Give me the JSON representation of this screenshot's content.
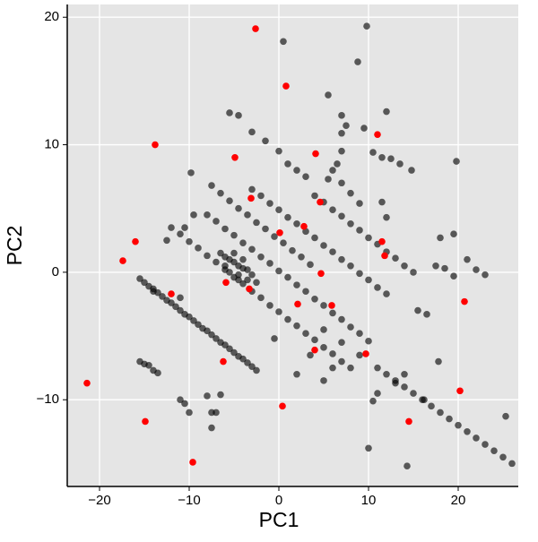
{
  "chart_data": {
    "type": "scatter",
    "x_label": "PC1",
    "y_label": "PC2",
    "xlim": [
      -23.6,
      26.7
    ],
    "ylim": [
      -16.8,
      21.0
    ],
    "xticks": [
      {
        "value": -20,
        "label": "−20"
      },
      {
        "value": -10,
        "label": "−10"
      },
      0,
      10,
      20
    ],
    "yticks": [
      {
        "value": -10,
        "label": "−10"
      },
      0,
      10,
      20
    ],
    "grid": true,
    "series": [
      {
        "color": "rgba(0,0,0,0.62)",
        "x": [
          -15.5,
          -15,
          -14.5,
          -14,
          -13.5,
          -13,
          -12.5,
          -12,
          -11.5,
          -11,
          -10.5,
          -10,
          -9.5,
          -9,
          -8.5,
          -8,
          -7.5,
          -7,
          -6.5,
          -6,
          -5.5,
          -5,
          -4.5,
          -4,
          -3.5,
          -3,
          -2.5,
          -12,
          -11,
          -10,
          -9,
          -8,
          -7,
          -6,
          -5.5,
          -5,
          -4.5,
          -4,
          -3,
          -2,
          -1,
          0,
          1,
          2,
          3,
          4,
          5,
          6,
          7,
          8,
          -6,
          -5.5,
          -5,
          -4.5,
          -4,
          -6.5,
          -3.5,
          -5,
          -4,
          -3,
          -6,
          -4.5,
          -3.5,
          -2.5,
          -8,
          -7,
          -6,
          -5,
          -4,
          -3,
          -2,
          -1,
          0,
          1,
          2,
          3,
          4,
          5,
          6,
          7,
          8,
          9,
          10,
          -3,
          -2,
          -1,
          0,
          1,
          2,
          3,
          4,
          5,
          6,
          7,
          8,
          9,
          10,
          11,
          12,
          -7.5,
          -6.5,
          -5.5,
          -4.5,
          -3.5,
          -2.5,
          -1.5,
          -0.5,
          0.5,
          1.5,
          2.5,
          3.5,
          4,
          5,
          6,
          7,
          8,
          9,
          10,
          11,
          12,
          13,
          14,
          15,
          5,
          7,
          9,
          11,
          12,
          13,
          14,
          15,
          16,
          17,
          18,
          19,
          20,
          21,
          22,
          23,
          24,
          25,
          26,
          -5.5,
          -4.5,
          -3,
          -1.5,
          0,
          1,
          2,
          3,
          5.5,
          7,
          7.5,
          9.5,
          12,
          9.8,
          8.8,
          0.5,
          7,
          7,
          6.5,
          10.5,
          11.5,
          12.5,
          13.5,
          14.8,
          6,
          5.5,
          7,
          8,
          9,
          11.5,
          12,
          19.8,
          19.5,
          18,
          17.5,
          18.5,
          21,
          22,
          23,
          19.5,
          15.5,
          16.5,
          17.8,
          25.3,
          16.2,
          13,
          14,
          11,
          -9.8,
          -9.5,
          -10.5,
          -12.5,
          -11,
          -14,
          -15.5,
          -15,
          -14.5,
          -14,
          -13.5,
          -11,
          -10.5,
          -10,
          -7.5,
          -7,
          -7.5,
          -6.5,
          -0.5,
          3.5,
          6,
          10.5,
          10,
          14.3,
          5,
          2,
          -8
        ],
        "values": [
          -0.5,
          -0.8,
          -1.1,
          -1.3,
          -1.6,
          -1.9,
          -2.2,
          -2.4,
          -2.7,
          -3.0,
          -3.3,
          -3.5,
          -3.8,
          -4.1,
          -4.4,
          -4.6,
          -4.9,
          -5.2,
          -5.5,
          -5.7,
          -6.0,
          -6.3,
          -6.6,
          -6.8,
          -7.1,
          -7.4,
          -7.7,
          3.5,
          3.0,
          2.4,
          1.9,
          1.3,
          0.8,
          0.2,
          0,
          -0.4,
          -0.6,
          -0.9,
          -1.5,
          -2.0,
          -2.6,
          -3.1,
          -3.7,
          -4.2,
          -4.8,
          -5.3,
          -5.9,
          -6.4,
          -7.0,
          -7.5,
          1.2,
          1.0,
          0.8,
          0.5,
          0.3,
          1.5,
          0.2,
          1.5,
          1.0,
          -0.2,
          0.5,
          -0.2,
          -0.6,
          -0.8,
          4.5,
          4.0,
          3.4,
          2.9,
          2.3,
          1.8,
          1.2,
          0.7,
          0.1,
          -0.4,
          -1.0,
          -1.5,
          -2.1,
          -2.6,
          -3.2,
          -3.7,
          -4.3,
          -4.8,
          -5.4,
          6.5,
          6.0,
          5.4,
          4.9,
          4.3,
          3.8,
          3.2,
          2.7,
          2.1,
          1.6,
          1.0,
          0.5,
          -0.1,
          -0.6,
          -1.2,
          -1.7,
          6.8,
          6.2,
          5.6,
          5.0,
          4.5,
          3.9,
          3.4,
          2.8,
          2.3,
          1.7,
          1.2,
          0.6,
          6.0,
          5.5,
          4.9,
          4.4,
          3.8,
          3.3,
          2.7,
          2.2,
          1.6,
          1.1,
          0.5,
          0.0,
          -4.5,
          -5.5,
          -6.5,
          -7.5,
          -8.0,
          -8.5,
          -9.0,
          -9.5,
          -10.0,
          -10.5,
          -11.0,
          -11.5,
          -12.0,
          -12.5,
          -13.0,
          -13.5,
          -14.0,
          -14.5,
          -15.0,
          12.5,
          12.3,
          11,
          10.3,
          9.5,
          8.5,
          8,
          7.5,
          13.9,
          12.3,
          11.5,
          11.3,
          12.6,
          19.3,
          16.5,
          18.1,
          10.9,
          9.5,
          8.5,
          9.4,
          9,
          8.9,
          8.5,
          8,
          8,
          7.3,
          7,
          6.2,
          5.4,
          5.5,
          4.3,
          8.7,
          3,
          2.7,
          0.5,
          0.3,
          1,
          0.2,
          -0.2,
          -0.3,
          -3,
          -3.3,
          -7,
          -11.3,
          -10,
          -8.7,
          -8,
          -9.5,
          7.8,
          4.5,
          3.5,
          2.5,
          -2,
          -1.5,
          -7,
          -7.2,
          -7.3,
          -7.7,
          -7.9,
          -10,
          -10.3,
          -11,
          -11,
          -11,
          -12.2,
          -9.6,
          -5.2,
          -6.5,
          -7.5,
          -10.1,
          -13.8,
          -15.2,
          -8.5,
          -8,
          -9.7
        ]
      },
      {
        "color": "#ff0000",
        "x": [
          -2.6,
          0.8,
          -13.8,
          -4.9,
          11.0,
          4.1,
          -3.1,
          4.6,
          -16.0,
          0.1,
          2.8,
          -17.4,
          11.5,
          11.8,
          4.7,
          -12.0,
          -5.9,
          -3.3,
          2.1,
          5.9,
          20.7,
          -6.2,
          4.0,
          9.7,
          -21.4,
          20.2,
          0.4,
          -14.9,
          14.5,
          -9.6
        ],
        "values": [
          19.1,
          14.6,
          10.0,
          9.0,
          10.8,
          9.3,
          5.8,
          5.5,
          2.4,
          3.1,
          3.6,
          0.9,
          2.4,
          1.3,
          -0.1,
          -1.7,
          -0.8,
          -1.3,
          -2.5,
          -2.6,
          -2.3,
          -7.0,
          -6.1,
          -6.4,
          -8.7,
          -9.3,
          -10.5,
          -11.7,
          -11.7,
          -14.9
        ]
      }
    ]
  }
}
